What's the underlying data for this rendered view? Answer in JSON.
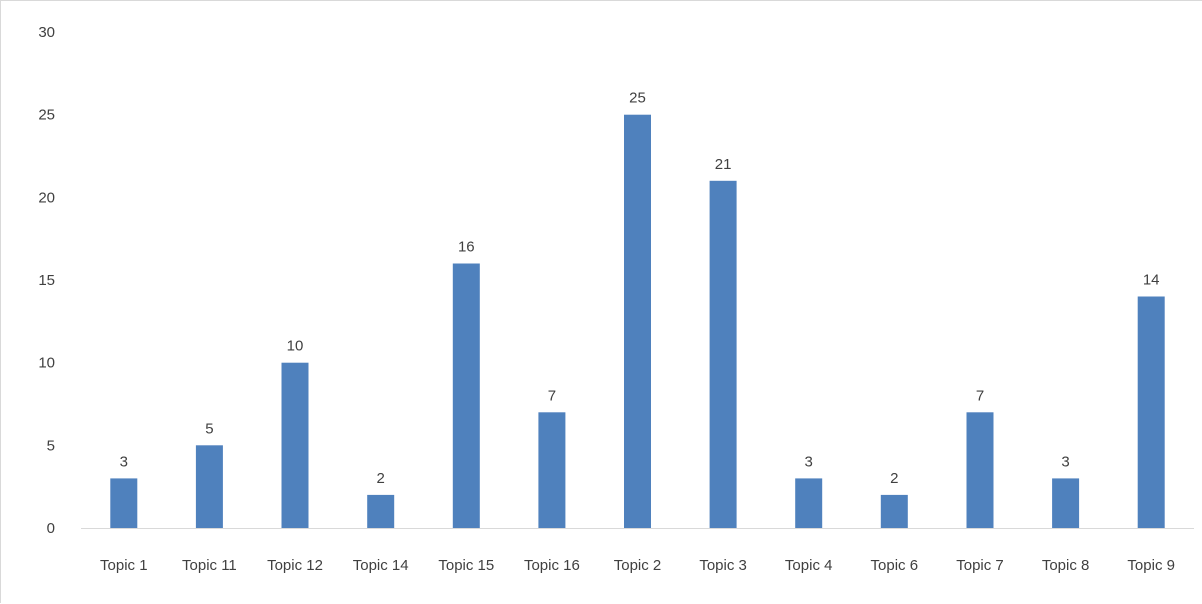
{
  "chart_data": {
    "type": "bar",
    "categories": [
      "Topic 1",
      "Topic 11",
      "Topic 12",
      "Topic 14",
      "Topic 15",
      "Topic 16",
      "Topic 2",
      "Topic 3",
      "Topic 4",
      "Topic 6",
      "Topic 7",
      "Topic 8",
      "Topic 9"
    ],
    "values": [
      3,
      5,
      10,
      2,
      16,
      7,
      25,
      21,
      3,
      2,
      7,
      3,
      14
    ],
    "title": "",
    "xlabel": "",
    "ylabel": "",
    "ylim": [
      0,
      30
    ],
    "yticks": [
      0,
      5,
      10,
      15,
      20,
      25,
      30
    ],
    "grid": false,
    "legend": "none",
    "data_labels": true
  },
  "colors": {
    "bar": "#4f81bd",
    "axis": "#d9d9d9",
    "text": "#404040"
  }
}
